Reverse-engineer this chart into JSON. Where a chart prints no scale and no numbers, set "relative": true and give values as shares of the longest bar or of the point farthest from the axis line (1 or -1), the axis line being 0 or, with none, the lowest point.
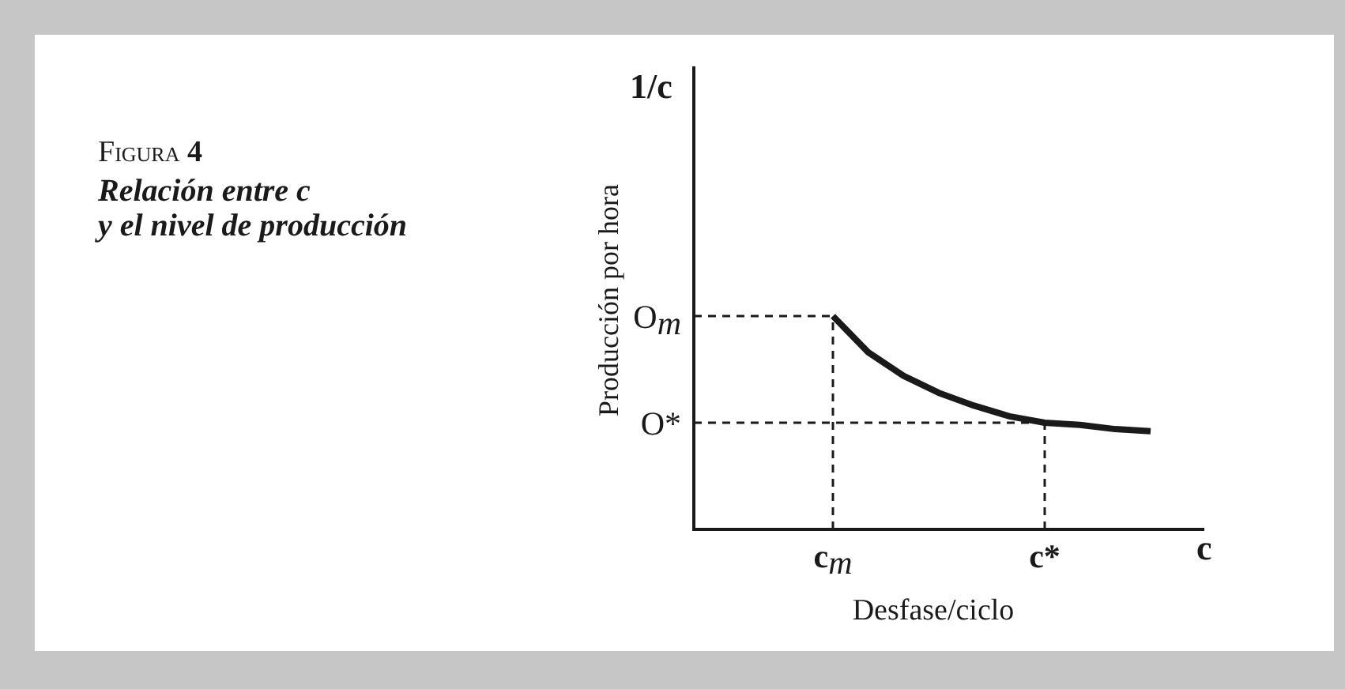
{
  "chart_data": {
    "type": "line",
    "title": "Figura 4",
    "subtitle": "Relación entre c\ny el nivel de producción",
    "xlabel": "Desfase/ciclo",
    "annotations": [
      "1/c",
      "c",
      "Producción por hora"
    ],
    "relative": true,
    "grid": "x",
    "categories": [
      "c$_{m}$",
      null,
      null,
      null,
      null,
      null,
      "c*",
      null,
      null,
      null
    ],
    "series": [
      {
        "color": "#1a1a1a",
        "values": [
          1,
          0.83,
          0.72,
          0.64,
          0.58,
          0.53,
          0.5,
          0.49,
          0.47,
          0.46
        ]
      }
    ],
    "ref_lines": [
      {
        "axis": "y",
        "value": 1,
        "label": "O$_{m}$",
        "line_style": "dashed"
      },
      {
        "axis": "y",
        "value": 0.5,
        "label": "O*",
        "line_style": "dashed"
      }
    ]
  }
}
